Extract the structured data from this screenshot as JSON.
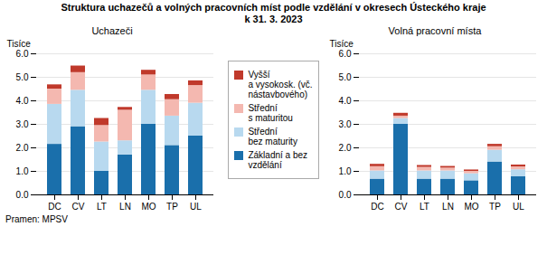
{
  "title": "Struktura uchazečů a volných pracovních míst podle vzdělání v okresech Ústeckého kraje",
  "subtitle": "k 31. 3. 2023",
  "annotations": [
    "Pramen: MPSV"
  ],
  "chart_data": [
    {
      "type": "bar",
      "stacked": true,
      "title": "Uchazeči",
      "y_label": "Tisíce",
      "categories": [
        "DC",
        "CV",
        "LT",
        "LN",
        "MO",
        "TP",
        "UL"
      ],
      "series": [
        {
          "name": "Základní a bez\nvzdělání",
          "color": "#1a6fab",
          "values": [
            2.15,
            2.9,
            1.0,
            1.7,
            3.0,
            2.1,
            2.5
          ]
        },
        {
          "name": "Střední\nbez maturity",
          "color": "#b8d9ef",
          "values": [
            1.7,
            1.55,
            1.25,
            0.6,
            1.45,
            1.25,
            1.4
          ]
        },
        {
          "name": "Střední\ns maturitou",
          "color": "#f4b8b0",
          "values": [
            0.65,
            0.75,
            0.7,
            1.3,
            0.65,
            0.7,
            0.75
          ]
        },
        {
          "name": "Vyšší\na vysokosk. (vč.\nnástavbového)",
          "color": "#c0392b",
          "values": [
            0.18,
            0.28,
            0.3,
            0.12,
            0.2,
            0.22,
            0.2
          ]
        }
      ],
      "ylim": [
        0,
        6
      ],
      "yticks": [
        0,
        1,
        2,
        3,
        4,
        5,
        6
      ],
      "grid": true
    },
    {
      "type": "bar",
      "stacked": true,
      "title": "Volná pracovní místa",
      "y_label": "Tisíce",
      "categories": [
        "DC",
        "CV",
        "LT",
        "LN",
        "MO",
        "TP",
        "UL"
      ],
      "series": [
        {
          "name": "Základní a bez\nvzdělání",
          "color": "#1a6fab",
          "values": [
            0.67,
            3.0,
            0.67,
            0.67,
            0.6,
            1.4,
            0.77
          ]
        },
        {
          "name": "Střední\nbez maturity",
          "color": "#b8d9ef",
          "values": [
            0.35,
            0.25,
            0.35,
            0.35,
            0.3,
            0.5,
            0.3
          ]
        },
        {
          "name": "Střední\ns maturitou",
          "color": "#f4b8b0",
          "values": [
            0.18,
            0.1,
            0.15,
            0.12,
            0.1,
            0.15,
            0.12
          ]
        },
        {
          "name": "Vyšší\na vysokosk. (vč.\nnástavbového)",
          "color": "#c0392b",
          "values": [
            0.1,
            0.12,
            0.08,
            0.07,
            0.06,
            0.1,
            0.08
          ]
        }
      ],
      "ylim": [
        0,
        6
      ],
      "yticks": [
        0,
        1,
        2,
        3,
        4,
        5,
        6
      ],
      "grid": true
    }
  ]
}
